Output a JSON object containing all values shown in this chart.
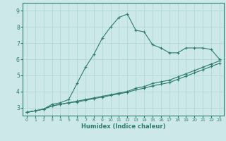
{
  "xlabel": "Humidex (Indice chaleur)",
  "x_values": [
    0,
    1,
    2,
    3,
    4,
    5,
    6,
    7,
    8,
    9,
    10,
    11,
    12,
    13,
    14,
    15,
    16,
    17,
    18,
    19,
    20,
    21,
    22,
    23
  ],
  "line1": [
    2.7,
    2.8,
    2.9,
    3.2,
    3.3,
    3.5,
    4.5,
    5.5,
    6.3,
    7.3,
    8.0,
    8.6,
    8.8,
    7.8,
    7.7,
    6.9,
    6.7,
    6.4,
    6.4,
    6.7,
    6.7,
    6.7,
    6.6,
    6.0
  ],
  "line2": [
    2.7,
    2.8,
    2.9,
    3.1,
    3.2,
    3.3,
    3.4,
    3.5,
    3.6,
    3.7,
    3.8,
    3.9,
    4.0,
    4.2,
    4.3,
    4.5,
    4.6,
    4.7,
    4.9,
    5.1,
    5.3,
    5.5,
    5.7,
    5.9
  ],
  "line3": [
    2.7,
    2.8,
    2.9,
    3.1,
    3.2,
    3.3,
    3.35,
    3.45,
    3.55,
    3.65,
    3.75,
    3.85,
    3.95,
    4.1,
    4.2,
    4.35,
    4.45,
    4.55,
    4.75,
    4.95,
    5.15,
    5.35,
    5.55,
    5.75
  ],
  "line_color": "#2e7d6b",
  "bg_color": "#cce8e8",
  "grid_color": "#b0d8d8",
  "ylim": [
    2.5,
    9.5
  ],
  "xlim": [
    -0.5,
    23.5
  ]
}
